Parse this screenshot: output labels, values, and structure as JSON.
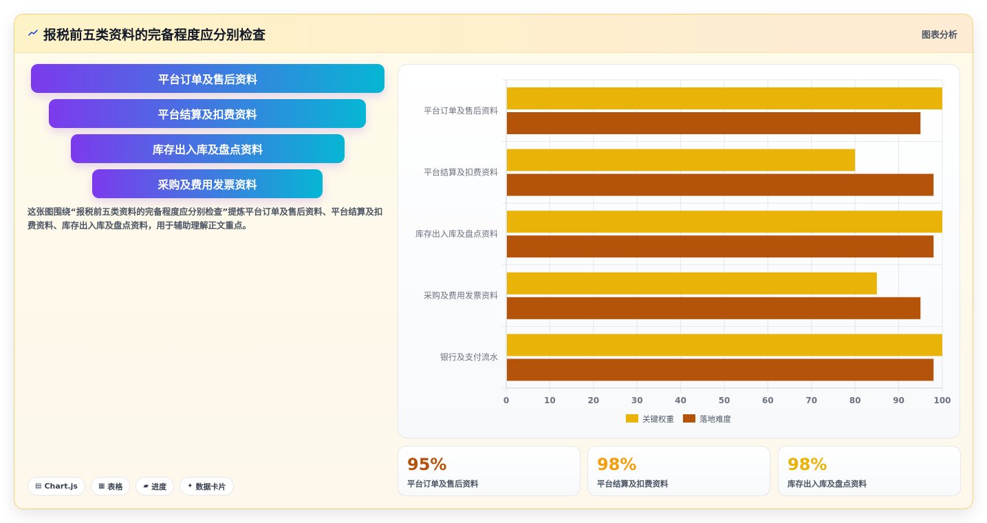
{
  "header": {
    "title": "报税前五类资料的完备程度应分别检查",
    "right_label": "图表分析"
  },
  "funnel": [
    "平台订单及售后资料",
    "平台结算及扣费资料",
    "库存出入库及盘点资料",
    "采购及费用发票资料"
  ],
  "description": "这张图围绕“报税前五类资料的完备程度应分别检查”提炼平台订单及售后资料、平台结算及扣费资料、库存出入库及盘点资料，用于辅助理解正文重点。",
  "chips": [
    {
      "icon": "chart-icon",
      "glyph": "▤",
      "label": "Chart.js"
    },
    {
      "icon": "table-icon",
      "glyph": "▦",
      "label": "表格"
    },
    {
      "icon": "progress-icon",
      "glyph": "▰",
      "label": "进度"
    },
    {
      "icon": "sparkle-icon",
      "glyph": "✦",
      "label": "数据卡片"
    }
  ],
  "stats": [
    {
      "value": "95%",
      "label": "平台订单及售后资料",
      "color": "#b45309"
    },
    {
      "value": "98%",
      "label": "平台结算及扣费资料",
      "color": "#f59e0b"
    },
    {
      "value": "98%",
      "label": "库存出入库及盘点资料",
      "color": "#eab308"
    }
  ],
  "chart_data": {
    "type": "bar",
    "orientation": "horizontal",
    "categories": [
      "平台订单及售后资料",
      "平台结算及扣费资料",
      "库存出入库及盘点资料",
      "采购及费用发票资料",
      "银行及支付流水"
    ],
    "series": [
      {
        "name": "关键权重",
        "values": [
          100,
          80,
          100,
          85,
          100
        ],
        "color": "#eab308"
      },
      {
        "name": "落地难度",
        "values": [
          95,
          98,
          98,
          95,
          98
        ],
        "color": "#b4540a"
      }
    ],
    "xlim": [
      0,
      100
    ],
    "xticks": [
      0,
      10,
      20,
      30,
      40,
      50,
      60,
      70,
      80,
      90,
      100
    ],
    "grid": true,
    "legend": "bottom"
  }
}
